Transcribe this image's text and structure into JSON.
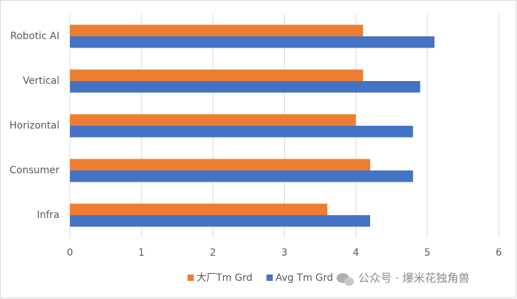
{
  "chart_data": {
    "type": "hbar",
    "categories": [
      "Robotic AI",
      "Vertical",
      "Horizontal",
      "Consumer",
      "Infra"
    ],
    "series": [
      {
        "name": "大厂Tm Grd",
        "color": "#ed7d31",
        "values": [
          4.1,
          4.1,
          4.0,
          4.2,
          3.6
        ]
      },
      {
        "name": "Avg Tm Grd",
        "color": "#4472c4",
        "values": [
          5.1,
          4.9,
          4.8,
          4.8,
          4.2
        ]
      }
    ],
    "xlim": [
      0,
      6
    ],
    "xticks": [
      0,
      1,
      2,
      3,
      4,
      5,
      6
    ],
    "grid": true,
    "legend": "bottom",
    "watermark": "公众号 · 爆米花独角兽"
  }
}
